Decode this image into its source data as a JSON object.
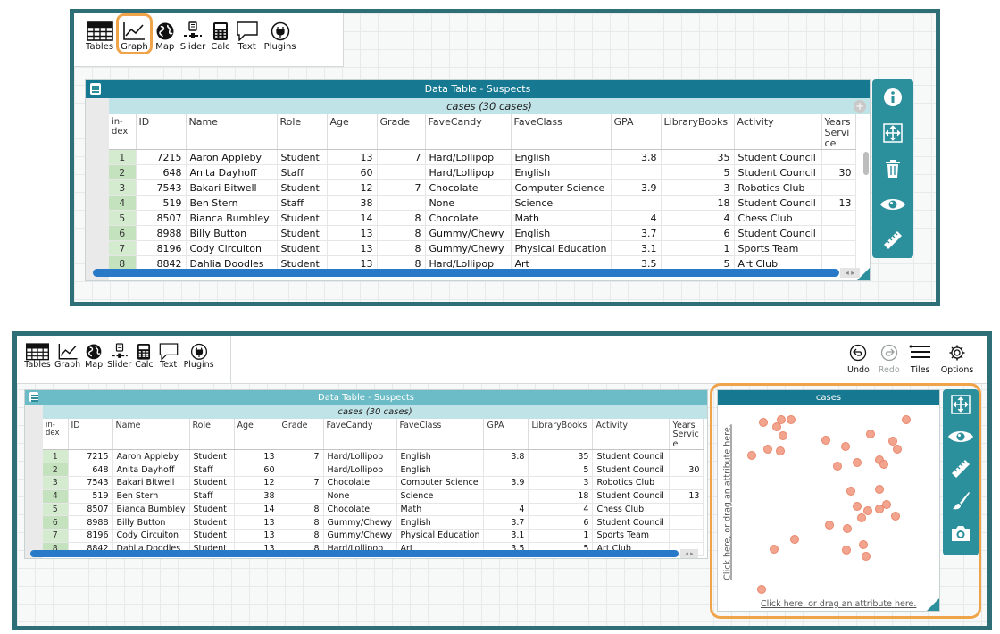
{
  "toolbar": {
    "tools": [
      {
        "label": "Tables",
        "icon": "table-icon"
      },
      {
        "label": "Graph",
        "icon": "graph-icon"
      },
      {
        "label": "Map",
        "icon": "globe-icon"
      },
      {
        "label": "Slider",
        "icon": "slider-icon"
      },
      {
        "label": "Calc",
        "icon": "calculator-icon"
      },
      {
        "label": "Text",
        "icon": "text-bubble-icon"
      },
      {
        "label": "Plugins",
        "icon": "plug-icon"
      }
    ],
    "right_tools": [
      {
        "label": "Undo",
        "icon": "undo-icon"
      },
      {
        "label": "Redo",
        "icon": "redo-icon"
      },
      {
        "label": "Tiles",
        "icon": "tiles-icon"
      },
      {
        "label": "Options",
        "icon": "gear-icon"
      }
    ]
  },
  "table": {
    "title": "Data Table - Suspects",
    "cases_label": "cases (30 cases)",
    "plus": "+",
    "columns": [
      "in-dex",
      "ID",
      "Name",
      "Role",
      "Age",
      "Grade",
      "FaveCandy",
      "FaveClass",
      "GPA",
      "LibraryBooks",
      "Activity",
      "YearsService"
    ],
    "rows": [
      {
        "index": "1",
        "ID": "7215",
        "Name": "Aaron Appleby",
        "Role": "Student",
        "Age": "13",
        "Grade": "7",
        "FaveCandy": "Hard/Lollipop",
        "FaveClass": "English",
        "GPA": "3.8",
        "LibraryBooks": "35",
        "Activity": "Student Council",
        "YearsService": ""
      },
      {
        "index": "2",
        "ID": "648",
        "Name": "Anita Dayhoff",
        "Role": "Staff",
        "Age": "60",
        "Grade": "",
        "FaveCandy": "Hard/Lollipop",
        "FaveClass": "English",
        "GPA": "",
        "LibraryBooks": "5",
        "Activity": "Student Council",
        "YearsService": "30"
      },
      {
        "index": "3",
        "ID": "7543",
        "Name": "Bakari Bitwell",
        "Role": "Student",
        "Age": "12",
        "Grade": "7",
        "FaveCandy": "Chocolate",
        "FaveClass": "Computer Science",
        "GPA": "3.9",
        "LibraryBooks": "3",
        "Activity": "Robotics Club",
        "YearsService": ""
      },
      {
        "index": "4",
        "ID": "519",
        "Name": "Ben Stern",
        "Role": "Staff",
        "Age": "38",
        "Grade": "",
        "FaveCandy": "None",
        "FaveClass": "Science",
        "GPA": "",
        "LibraryBooks": "18",
        "Activity": "Student Council",
        "YearsService": "13"
      },
      {
        "index": "5",
        "ID": "8507",
        "Name": "Bianca Bumbley",
        "Role": "Student",
        "Age": "14",
        "Grade": "8",
        "FaveCandy": "Chocolate",
        "FaveClass": "Math",
        "GPA": "4",
        "LibraryBooks": "4",
        "Activity": "Chess Club",
        "YearsService": ""
      },
      {
        "index": "6",
        "ID": "8988",
        "Name": "Billy Button",
        "Role": "Student",
        "Age": "13",
        "Grade": "8",
        "FaveCandy": "Gummy/Chewy",
        "FaveClass": "English",
        "GPA": "3.7",
        "LibraryBooks": "6",
        "Activity": "Student Council",
        "YearsService": ""
      },
      {
        "index": "7",
        "ID": "8196",
        "Name": "Cody Circuiton",
        "Role": "Student",
        "Age": "13",
        "Grade": "8",
        "FaveCandy": "Gummy/Chewy",
        "FaveClass": "Physical Education",
        "GPA": "3.1",
        "LibraryBooks": "1",
        "Activity": "Sports Team",
        "YearsService": ""
      },
      {
        "index": "8",
        "ID": "8842",
        "Name": "Dahlia Doodles",
        "Role": "Student",
        "Age": "13",
        "Grade": "8",
        "FaveCandy": "Hard/Lollipop",
        "FaveClass": "Art",
        "GPA": "3.5",
        "LibraryBooks": "5",
        "Activity": "Art Club",
        "YearsService": ""
      }
    ]
  },
  "inspector_top": [
    "info-icon",
    "rescale-icon",
    "trash-icon",
    "eye-icon",
    "ruler-icon"
  ],
  "inspector_graph": [
    "rescale-icon",
    "eye-icon",
    "ruler-icon",
    "brush-icon",
    "camera-icon"
  ],
  "graph": {
    "title": "cases",
    "x_hint": "Click here, or drag an attribute here.",
    "y_hint": "Click here, or drag an attribute here.",
    "points_count": 30
  },
  "colors": {
    "frame": "#2e6e76",
    "title_dark": "#177991",
    "title_light": "#6bbcc6",
    "highlight": "#f0a44a",
    "dot": "#f2a48e",
    "inspector": "#2c8f9c"
  }
}
